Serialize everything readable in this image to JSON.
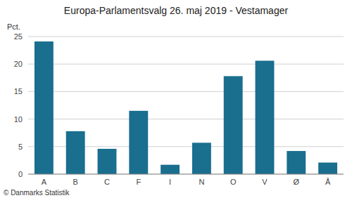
{
  "chart_data": {
    "type": "bar",
    "title": "Europa-Parlamentsvalg 26. maj 2019 - Vestamager",
    "categories": [
      "A",
      "B",
      "C",
      "F",
      "I",
      "N",
      "O",
      "V",
      "Ø",
      "Å"
    ],
    "values": [
      24.1,
      7.8,
      4.6,
      11.5,
      1.7,
      5.7,
      17.8,
      20.6,
      4.2,
      2.1
    ],
    "color": "#1a6e8e",
    "ylabel": "Pct.",
    "ylim": [
      0,
      25
    ],
    "yticks": [
      0,
      5,
      10,
      15,
      20,
      25
    ],
    "grid": true,
    "annotations": [
      "© Danmarks Statistik"
    ]
  }
}
